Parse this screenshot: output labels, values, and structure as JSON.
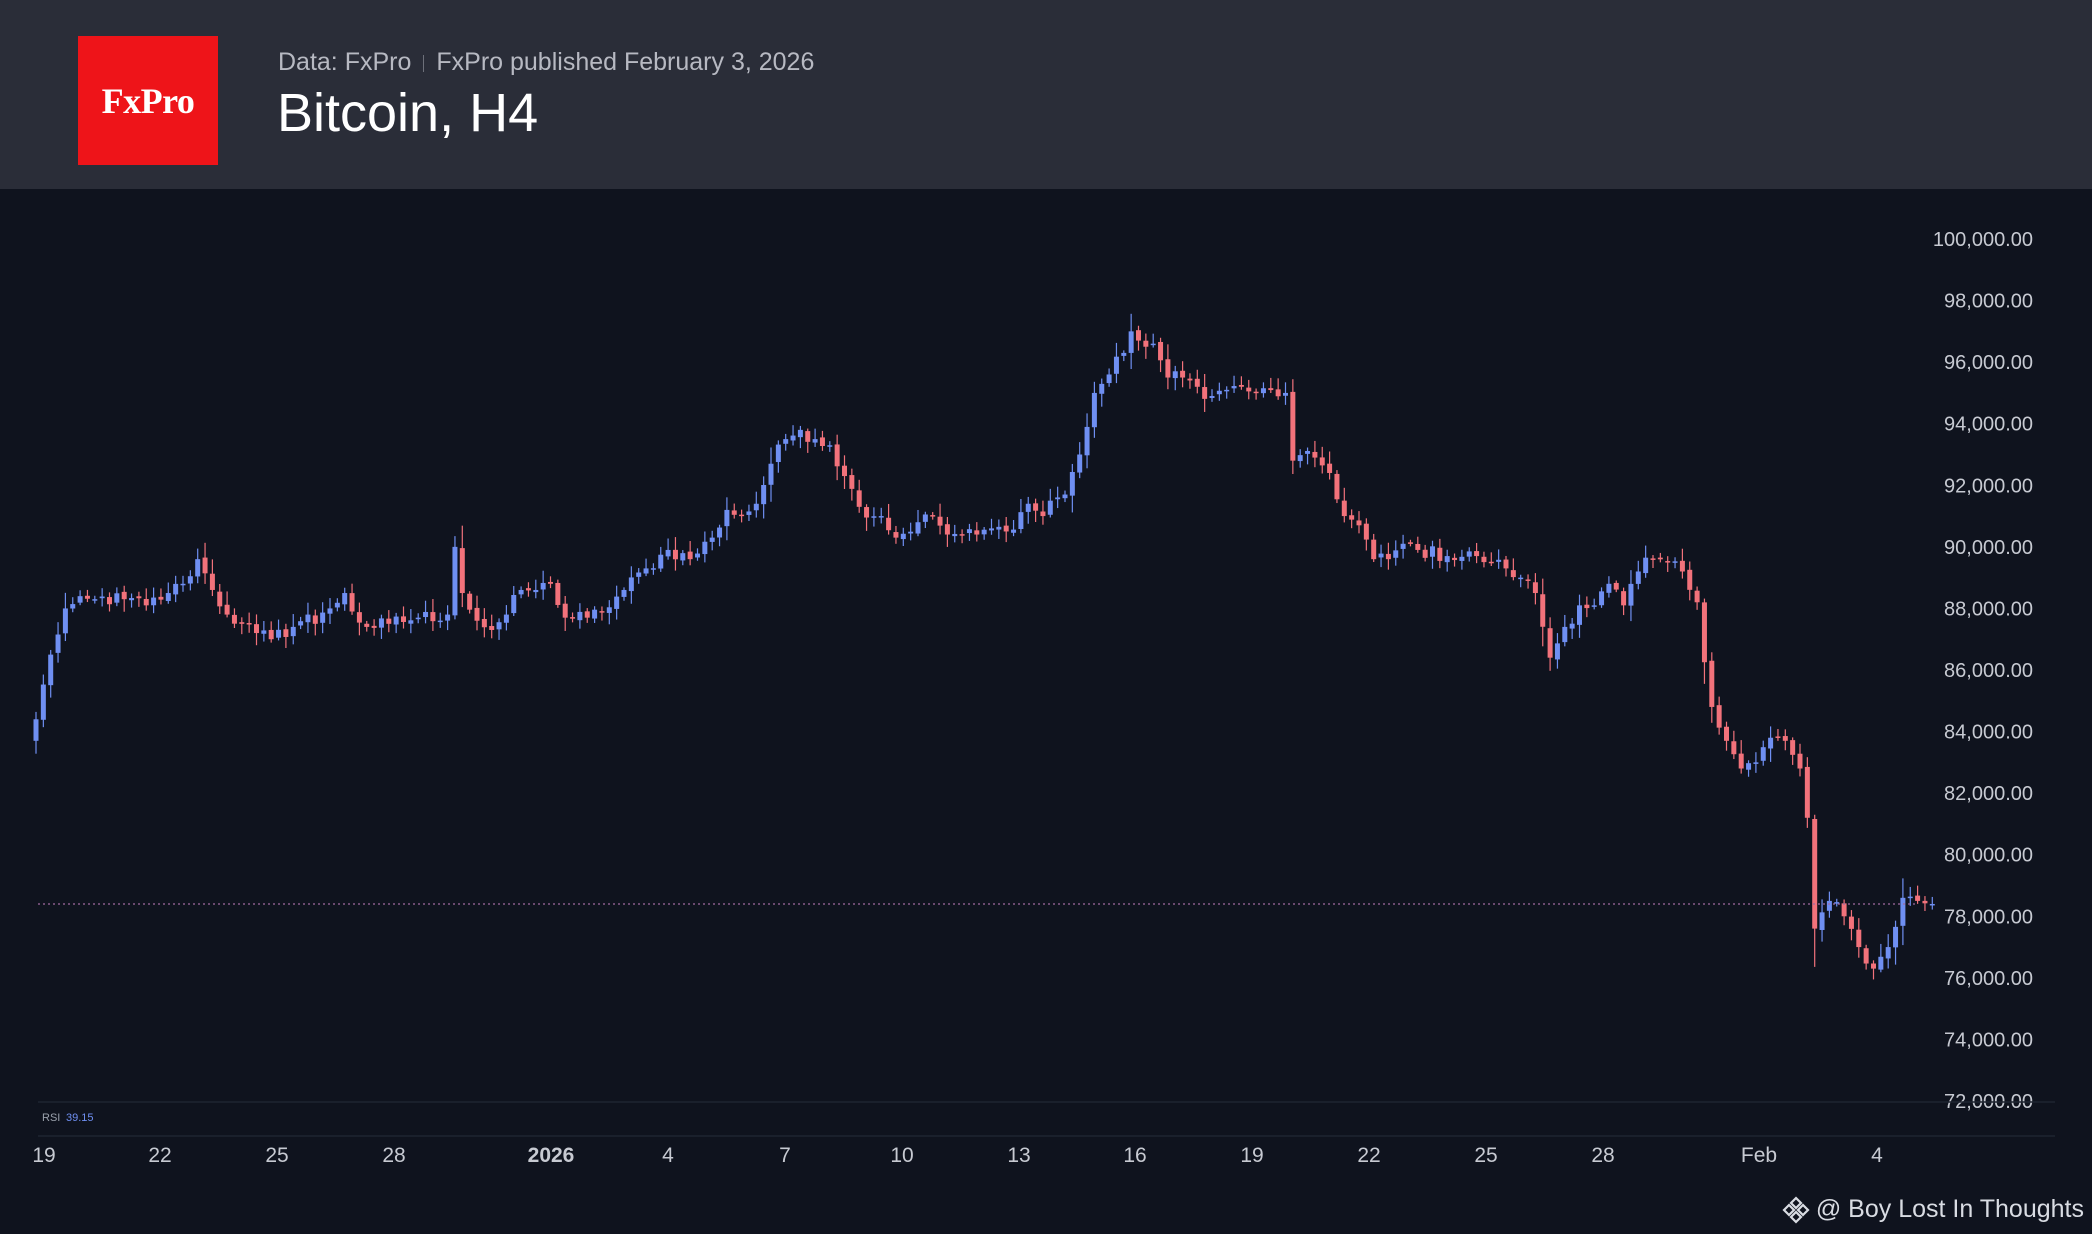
{
  "header": {
    "logo_text": "FxPro",
    "data_source": "Data: FxPro",
    "published": "FxPro published February 3, 2026",
    "title": "Bitcoin, H4"
  },
  "watermark": {
    "icon": "binance-diamond-icon",
    "text": "@ Boy Lost In Thoughts"
  },
  "colors": {
    "up": "#6f8ff2",
    "down": "#f2727b",
    "background": "#0f131e",
    "header": "#2a2d38",
    "logo": "#ee1419",
    "last_price_line": "#a06aa0"
  },
  "indicator": {
    "name": "RSI",
    "value": "39.15"
  },
  "chart_data": {
    "type": "candlestick",
    "symbol": "Bitcoin",
    "timeframe": "H4",
    "ylim": [
      72000,
      100000
    ],
    "y_ticks": [
      "100,000.00",
      "98,000.00",
      "96,000.00",
      "94,000.00",
      "92,000.00",
      "90,000.00",
      "88,000.00",
      "86,000.00",
      "84,000.00",
      "82,000.00",
      "80,000.00",
      "78,000.00",
      "76,000.00",
      "74,000.00",
      "72,000.00"
    ],
    "x_ticks": [
      "19",
      "22",
      "25",
      "28",
      "2026",
      "4",
      "7",
      "10",
      "13",
      "16",
      "19",
      "22",
      "25",
      "28",
      "Feb",
      "4"
    ],
    "grid": false,
    "last_price": 78400,
    "anchors": [
      [
        0,
        84400
      ],
      [
        2,
        86500
      ],
      [
        4,
        88000
      ],
      [
        8,
        88300
      ],
      [
        12,
        88300
      ],
      [
        15,
        88100
      ],
      [
        18,
        88500
      ],
      [
        20,
        88800
      ],
      [
        22,
        89600
      ],
      [
        24,
        88600
      ],
      [
        26,
        87800
      ],
      [
        28,
        87500
      ],
      [
        30,
        87200
      ],
      [
        32,
        87000
      ],
      [
        35,
        87400
      ],
      [
        37,
        87800
      ],
      [
        38,
        87500
      ],
      [
        40,
        88000
      ],
      [
        42,
        88500
      ],
      [
        43,
        87900
      ],
      [
        45,
        87400
      ],
      [
        48,
        87500
      ],
      [
        52,
        87700
      ],
      [
        56,
        87800
      ],
      [
        57,
        90000
      ],
      [
        58,
        88500
      ],
      [
        60,
        87600
      ],
      [
        62,
        87300
      ],
      [
        64,
        87800
      ],
      [
        66,
        88600
      ],
      [
        68,
        88600
      ],
      [
        70,
        88800
      ],
      [
        72,
        87700
      ],
      [
        75,
        87700
      ],
      [
        77,
        87900
      ],
      [
        80,
        88600
      ],
      [
        83,
        89300
      ],
      [
        86,
        89900
      ],
      [
        89,
        89600
      ],
      [
        92,
        90300
      ],
      [
        94,
        91200
      ],
      [
        96,
        91000
      ],
      [
        98,
        91400
      ],
      [
        100,
        92700
      ],
      [
        102,
        93500
      ],
      [
        104,
        93800
      ],
      [
        106,
        93500
      ],
      [
        108,
        93300
      ],
      [
        110,
        92300
      ],
      [
        112,
        91300
      ],
      [
        115,
        91000
      ],
      [
        117,
        90300
      ],
      [
        120,
        90800
      ],
      [
        122,
        91000
      ],
      [
        124,
        90400
      ],
      [
        126,
        90400
      ],
      [
        128,
        90400
      ],
      [
        130,
        90600
      ],
      [
        132,
        90500
      ],
      [
        135,
        91400
      ],
      [
        137,
        91000
      ],
      [
        138,
        91500
      ],
      [
        140,
        91700
      ],
      [
        142,
        93000
      ],
      [
        144,
        95000
      ],
      [
        146,
        95600
      ],
      [
        148,
        96300
      ],
      [
        149,
        97000
      ],
      [
        150,
        96700
      ],
      [
        152,
        96600
      ],
      [
        154,
        95500
      ],
      [
        156,
        95500
      ],
      [
        158,
        95200
      ],
      [
        160,
        94900
      ],
      [
        162,
        95100
      ],
      [
        164,
        95200
      ],
      [
        166,
        95000
      ],
      [
        170,
        95000
      ],
      [
        171,
        92800
      ],
      [
        174,
        92900
      ],
      [
        176,
        92400
      ],
      [
        178,
        91000
      ],
      [
        180,
        90700
      ],
      [
        182,
        89600
      ],
      [
        184,
        89600
      ],
      [
        186,
        90100
      ],
      [
        188,
        89900
      ],
      [
        192,
        89700
      ],
      [
        196,
        89700
      ],
      [
        198,
        89500
      ],
      [
        200,
        89300
      ],
      [
        202,
        89000
      ],
      [
        204,
        88500
      ],
      [
        206,
        86400
      ],
      [
        208,
        87400
      ],
      [
        210,
        88100
      ],
      [
        212,
        88100
      ],
      [
        214,
        88800
      ],
      [
        216,
        88100
      ],
      [
        218,
        89200
      ],
      [
        220,
        89600
      ],
      [
        222,
        89500
      ],
      [
        224,
        89200
      ],
      [
        226,
        88200
      ],
      [
        228,
        84800
      ],
      [
        230,
        83700
      ],
      [
        232,
        82800
      ],
      [
        234,
        83000
      ],
      [
        236,
        83800
      ],
      [
        238,
        83700
      ],
      [
        240,
        82800
      ],
      [
        241,
        81200
      ],
      [
        242,
        77600
      ],
      [
        244,
        78500
      ],
      [
        246,
        78000
      ],
      [
        248,
        77000
      ],
      [
        250,
        76300
      ],
      [
        252,
        77000
      ],
      [
        254,
        78600
      ],
      [
        256,
        78500
      ],
      [
        258,
        78400
      ]
    ]
  }
}
